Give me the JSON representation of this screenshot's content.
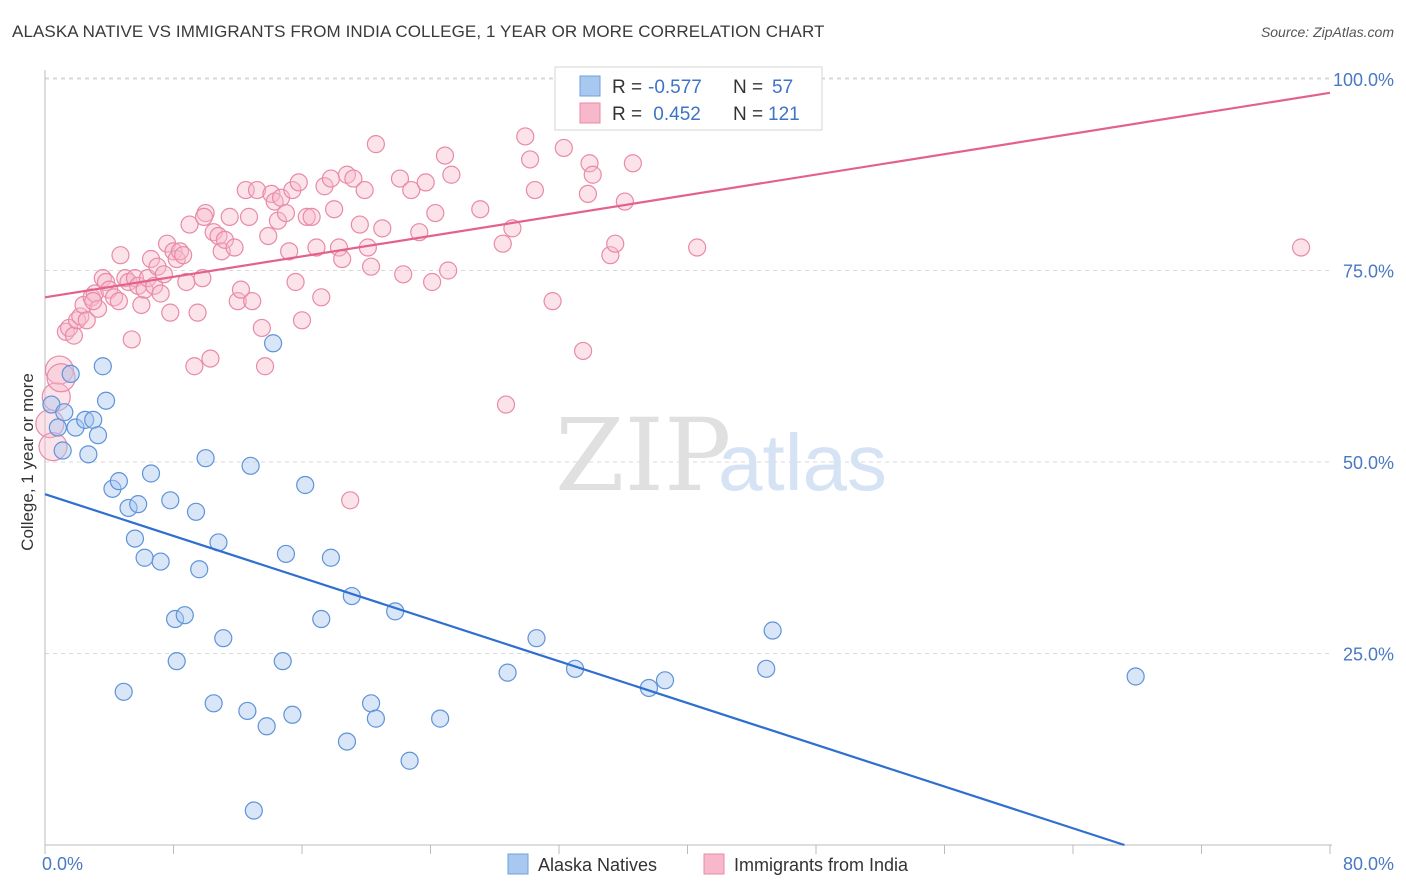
{
  "title": "ALASKA NATIVE VS IMMIGRANTS FROM INDIA COLLEGE, 1 YEAR OR MORE CORRELATION CHART",
  "source": "Source: ZipAtlas.com",
  "watermark": {
    "zip": "ZIP",
    "atlas": "atlas"
  },
  "legend_box": {
    "rows": [
      {
        "r_label": "R =",
        "r_value": "-0.577",
        "n_label": "N =",
        "n_value": "57",
        "color": "#a9c8ef",
        "stroke": "#6f9fdc"
      },
      {
        "r_label": "R =",
        "r_value": " 0.452",
        "n_label": "N =",
        "n_value": "121",
        "color": "#f7b8cb",
        "stroke": "#e98aa7"
      }
    ]
  },
  "bottom_legend": [
    {
      "label": "Alaska Natives",
      "color": "#a9c8ef",
      "stroke": "#6f9fdc"
    },
    {
      "label": "Immigrants from India",
      "color": "#f7b8cb",
      "stroke": "#e98aa7"
    }
  ],
  "colors": {
    "blue_fill": "rgba(169,200,239,0.45)",
    "blue_stroke": "#5f93d8",
    "blue_line": "#2f6fd0",
    "pink_fill": "rgba(247,184,203,0.40)",
    "pink_stroke": "#e88aa8",
    "pink_line": "#e3628d",
    "grid": "#d9d9d9"
  },
  "chart_data": {
    "type": "scatter",
    "title": "ALASKA NATIVE VS IMMIGRANTS FROM INDIA COLLEGE, 1 YEAR OR MORE CORRELATION CHART",
    "xlabel": "",
    "ylabel": "College, 1 year or more",
    "xlim": [
      0,
      80
    ],
    "ylim": [
      0,
      105
    ],
    "x_tick_labels": [
      "0.0%",
      "80.0%"
    ],
    "y_ticks": [
      25,
      50,
      75,
      100
    ],
    "y_tick_labels": [
      "25.0%",
      "50.0%",
      "75.0%",
      "100.0%"
    ],
    "grid": true,
    "legend_position": "top-center",
    "series": [
      {
        "name": "Alaska Natives",
        "r": -0.577,
        "n": 57,
        "trend": {
          "x": [
            0,
            67.2
          ],
          "y": [
            45.8,
            0
          ]
        },
        "points": [
          [
            0.4,
            57.5
          ],
          [
            0.8,
            54.5
          ],
          [
            1.1,
            51.5
          ],
          [
            1.2,
            56.5
          ],
          [
            1.6,
            61.5
          ],
          [
            1.9,
            54.5
          ],
          [
            2.5,
            55.5
          ],
          [
            2.7,
            51.0
          ],
          [
            3.0,
            55.5
          ],
          [
            3.3,
            53.5
          ],
          [
            3.6,
            62.5
          ],
          [
            3.8,
            58.0
          ],
          [
            4.2,
            46.5
          ],
          [
            4.6,
            47.5
          ],
          [
            4.9,
            20.0
          ],
          [
            5.2,
            44.0
          ],
          [
            5.6,
            40.0
          ],
          [
            5.8,
            44.5
          ],
          [
            6.2,
            37.5
          ],
          [
            6.6,
            48.5
          ],
          [
            7.2,
            37.0
          ],
          [
            7.8,
            45.0
          ],
          [
            8.2,
            24.0
          ],
          [
            8.1,
            29.5
          ],
          [
            8.7,
            30.0
          ],
          [
            9.4,
            43.5
          ],
          [
            9.6,
            36.0
          ],
          [
            10.5,
            18.5
          ],
          [
            10.8,
            39.5
          ],
          [
            11.1,
            27.0
          ],
          [
            12.6,
            17.5
          ],
          [
            12.8,
            49.5
          ],
          [
            13.0,
            4.5
          ],
          [
            13.8,
            15.5
          ],
          [
            14.2,
            65.5
          ],
          [
            14.8,
            24.0
          ],
          [
            15.0,
            38.0
          ],
          [
            15.4,
            17.0
          ],
          [
            16.2,
            47.0
          ],
          [
            17.2,
            29.5
          ],
          [
            17.8,
            37.5
          ],
          [
            18.8,
            13.5
          ],
          [
            19.1,
            32.5
          ],
          [
            20.3,
            18.5
          ],
          [
            20.6,
            16.5
          ],
          [
            21.8,
            30.5
          ],
          [
            22.7,
            11.0
          ],
          [
            24.6,
            16.5
          ],
          [
            28.8,
            22.5
          ],
          [
            30.6,
            27.0
          ],
          [
            33.0,
            23.0
          ],
          [
            37.6,
            20.5
          ],
          [
            38.6,
            21.5
          ],
          [
            44.9,
            23.0
          ],
          [
            45.3,
            28.0
          ],
          [
            67.9,
            22.0
          ],
          [
            10.0,
            50.5
          ]
        ]
      },
      {
        "name": "Immigrants from India",
        "r": 0.452,
        "n": 121,
        "trend": {
          "x": [
            0,
            80
          ],
          "y": [
            71.5,
            98.2
          ]
        },
        "points": [
          [
            0.3,
            55.0
          ],
          [
            0.5,
            52.0
          ],
          [
            0.7,
            58.5
          ],
          [
            0.9,
            62.0
          ],
          [
            1.0,
            61.0
          ],
          [
            1.3,
            67.0
          ],
          [
            1.5,
            67.5
          ],
          [
            1.8,
            66.5
          ],
          [
            2.0,
            68.5
          ],
          [
            2.2,
            69.0
          ],
          [
            2.4,
            70.5
          ],
          [
            2.6,
            68.5
          ],
          [
            2.9,
            71.5
          ],
          [
            3.1,
            72.0
          ],
          [
            3.3,
            70.0
          ],
          [
            3.6,
            74.0
          ],
          [
            3.8,
            73.5
          ],
          [
            4.0,
            72.5
          ],
          [
            4.3,
            71.5
          ],
          [
            4.6,
            71.0
          ],
          [
            4.7,
            77.0
          ],
          [
            5.0,
            74.0
          ],
          [
            5.2,
            73.5
          ],
          [
            5.4,
            66.0
          ],
          [
            5.6,
            74.0
          ],
          [
            5.8,
            73.0
          ],
          [
            6.0,
            70.5
          ],
          [
            6.2,
            72.5
          ],
          [
            6.4,
            74.0
          ],
          [
            6.6,
            76.5
          ],
          [
            6.8,
            73.0
          ],
          [
            7.0,
            75.5
          ],
          [
            7.2,
            72.0
          ],
          [
            7.4,
            74.5
          ],
          [
            7.6,
            78.5
          ],
          [
            7.8,
            69.5
          ],
          [
            8.0,
            77.5
          ],
          [
            8.2,
            76.5
          ],
          [
            8.4,
            77.5
          ],
          [
            8.6,
            77.0
          ],
          [
            8.8,
            73.5
          ],
          [
            9.0,
            81.0
          ],
          [
            9.3,
            62.5
          ],
          [
            9.5,
            69.5
          ],
          [
            9.8,
            74.0
          ],
          [
            10.0,
            82.5
          ],
          [
            10.3,
            63.5
          ],
          [
            10.5,
            80.0
          ],
          [
            10.8,
            79.5
          ],
          [
            11.0,
            77.5
          ],
          [
            11.2,
            79.0
          ],
          [
            11.5,
            82.0
          ],
          [
            11.8,
            78.0
          ],
          [
            12.0,
            71.0
          ],
          [
            12.2,
            72.5
          ],
          [
            12.5,
            85.5
          ],
          [
            12.7,
            82.0
          ],
          [
            12.9,
            71.0
          ],
          [
            13.2,
            85.5
          ],
          [
            13.5,
            67.5
          ],
          [
            13.7,
            62.5
          ],
          [
            13.9,
            79.5
          ],
          [
            14.1,
            85.0
          ],
          [
            14.3,
            84.0
          ],
          [
            14.5,
            81.5
          ],
          [
            14.7,
            84.5
          ],
          [
            15.0,
            82.5
          ],
          [
            15.2,
            77.5
          ],
          [
            15.4,
            85.5
          ],
          [
            15.6,
            73.5
          ],
          [
            15.8,
            86.5
          ],
          [
            16.0,
            68.5
          ],
          [
            16.3,
            82.0
          ],
          [
            16.6,
            82.0
          ],
          [
            16.9,
            78.0
          ],
          [
            17.2,
            71.5
          ],
          [
            17.4,
            86.0
          ],
          [
            17.8,
            87.0
          ],
          [
            18.0,
            83.0
          ],
          [
            18.3,
            78.0
          ],
          [
            18.5,
            76.5
          ],
          [
            18.8,
            87.5
          ],
          [
            19.0,
            45.0
          ],
          [
            19.2,
            87.0
          ],
          [
            19.6,
            81.0
          ],
          [
            19.9,
            85.5
          ],
          [
            20.1,
            78.0
          ],
          [
            20.3,
            75.5
          ],
          [
            20.6,
            91.5
          ],
          [
            21.0,
            80.5
          ],
          [
            22.1,
            87.0
          ],
          [
            22.3,
            74.5
          ],
          [
            22.8,
            85.5
          ],
          [
            23.3,
            80.0
          ],
          [
            23.7,
            86.5
          ],
          [
            24.1,
            73.5
          ],
          [
            24.3,
            82.5
          ],
          [
            24.9,
            90.0
          ],
          [
            25.1,
            75.0
          ],
          [
            25.3,
            87.5
          ],
          [
            27.1,
            83.0
          ],
          [
            28.5,
            78.5
          ],
          [
            28.7,
            57.5
          ],
          [
            29.1,
            80.5
          ],
          [
            29.9,
            92.5
          ],
          [
            30.2,
            89.5
          ],
          [
            30.5,
            85.5
          ],
          [
            31.6,
            71.0
          ],
          [
            32.3,
            91.0
          ],
          [
            33.5,
            64.5
          ],
          [
            33.8,
            85.0
          ],
          [
            33.9,
            89.0
          ],
          [
            34.1,
            87.5
          ],
          [
            35.2,
            77.0
          ],
          [
            35.5,
            78.5
          ],
          [
            36.1,
            84.0
          ],
          [
            36.6,
            89.0
          ],
          [
            40.6,
            78.0
          ],
          [
            78.2,
            78.0
          ],
          [
            3.0,
            71.0
          ],
          [
            9.9,
            82.0
          ]
        ]
      }
    ]
  }
}
